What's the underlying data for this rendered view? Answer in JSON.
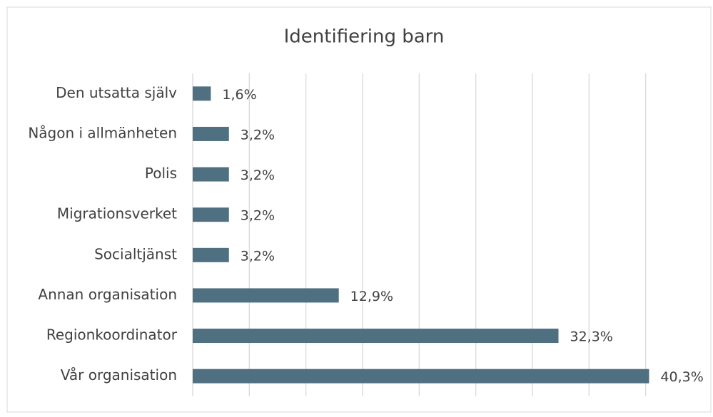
{
  "chart_data": {
    "type": "bar",
    "orientation": "horizontal",
    "title": "Identifiering barn",
    "categories": [
      "Den utsatta själv",
      "Någon i allmänheten",
      "Polis",
      "Migrationsverket",
      "Socialtjänst",
      "Annan organisation",
      "Regionkoordinator",
      "Vår organisation"
    ],
    "values": [
      1.6,
      3.2,
      3.2,
      3.2,
      3.2,
      12.9,
      32.3,
      40.3
    ],
    "value_labels": [
      "1,6%",
      "3,2%",
      "3,2%",
      "3,2%",
      "3,2%",
      "12,9%",
      "32,3%",
      "40,3%"
    ],
    "color": "#4e7080",
    "xlim": [
      0,
      45
    ],
    "xticks": [
      0,
      5,
      10,
      15,
      20,
      25,
      30,
      35,
      40
    ],
    "grid": true
  }
}
